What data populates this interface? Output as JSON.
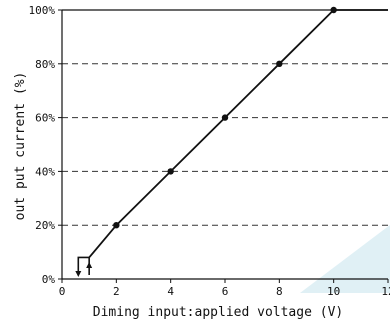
{
  "chart_data": {
    "type": "line",
    "title": "",
    "xlabel": "Diming input:applied voltage (V)",
    "ylabel": "out put current (%)",
    "xlim": [
      0,
      12
    ],
    "ylim": [
      0,
      100
    ],
    "x_ticks": [
      "0",
      "2",
      "4",
      "6",
      "8",
      "10",
      "12"
    ],
    "y_ticks": [
      "0%",
      "20%",
      "40%",
      "60%",
      "80%",
      "100%"
    ],
    "grid": "horizontal dashed",
    "series": [
      {
        "name": "",
        "points": [
          {
            "x": 1,
            "y": 8
          },
          {
            "x": 2,
            "y": 20
          },
          {
            "x": 4,
            "y": 40
          },
          {
            "x": 6,
            "y": 60
          },
          {
            "x": 8,
            "y": 80
          },
          {
            "x": 10,
            "y": 100
          },
          {
            "x": 12,
            "y": 100
          }
        ],
        "markers": [
          {
            "x": 2,
            "y": 20
          },
          {
            "x": 4,
            "y": 40
          },
          {
            "x": 6,
            "y": 60
          },
          {
            "x": 8,
            "y": 80
          },
          {
            "x": 10,
            "y": 100
          }
        ]
      }
    ],
    "hysteresis": {
      "x_low": 0.6,
      "x_high": 1,
      "y": 8
    },
    "colors": {
      "line": "#111111",
      "grid": "#333333",
      "watermark": "#cfe6ef"
    }
  }
}
